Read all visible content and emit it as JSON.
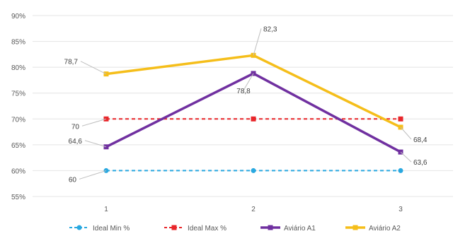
{
  "chart_data": {
    "type": "line",
    "x": [
      "1",
      "2",
      "3"
    ],
    "ylim": [
      55,
      90
    ],
    "y_ticks": [
      55,
      60,
      65,
      70,
      75,
      80,
      85,
      90
    ],
    "y_tick_labels": [
      "55%",
      "60%",
      "65%",
      "70%",
      "75%",
      "80%",
      "85%",
      "90%"
    ],
    "grid": true,
    "legend_position": "bottom",
    "series": [
      {
        "name": "Ideal Min %",
        "values": [
          60,
          60,
          60
        ],
        "color": "#29A8E0",
        "dashed": true,
        "marker": "circle",
        "labels": [
          "60",
          "",
          ""
        ]
      },
      {
        "name": "Ideal Max %",
        "values": [
          70,
          70,
          70
        ],
        "color": "#E8262A",
        "dashed": true,
        "marker": "square",
        "labels": [
          "70",
          "",
          ""
        ]
      },
      {
        "name": "Aviário A1",
        "values": [
          64.6,
          78.8,
          63.6
        ],
        "color": "#7030A0",
        "dashed": false,
        "marker": "square",
        "labels": [
          "64,6",
          "78,8",
          "63,6"
        ]
      },
      {
        "name": "Aviário A2",
        "values": [
          78.7,
          82.3,
          68.4
        ],
        "color": "#F5BE1A",
        "dashed": false,
        "marker": "square",
        "labels": [
          "78,7",
          "82,3",
          "68,4"
        ]
      }
    ]
  }
}
